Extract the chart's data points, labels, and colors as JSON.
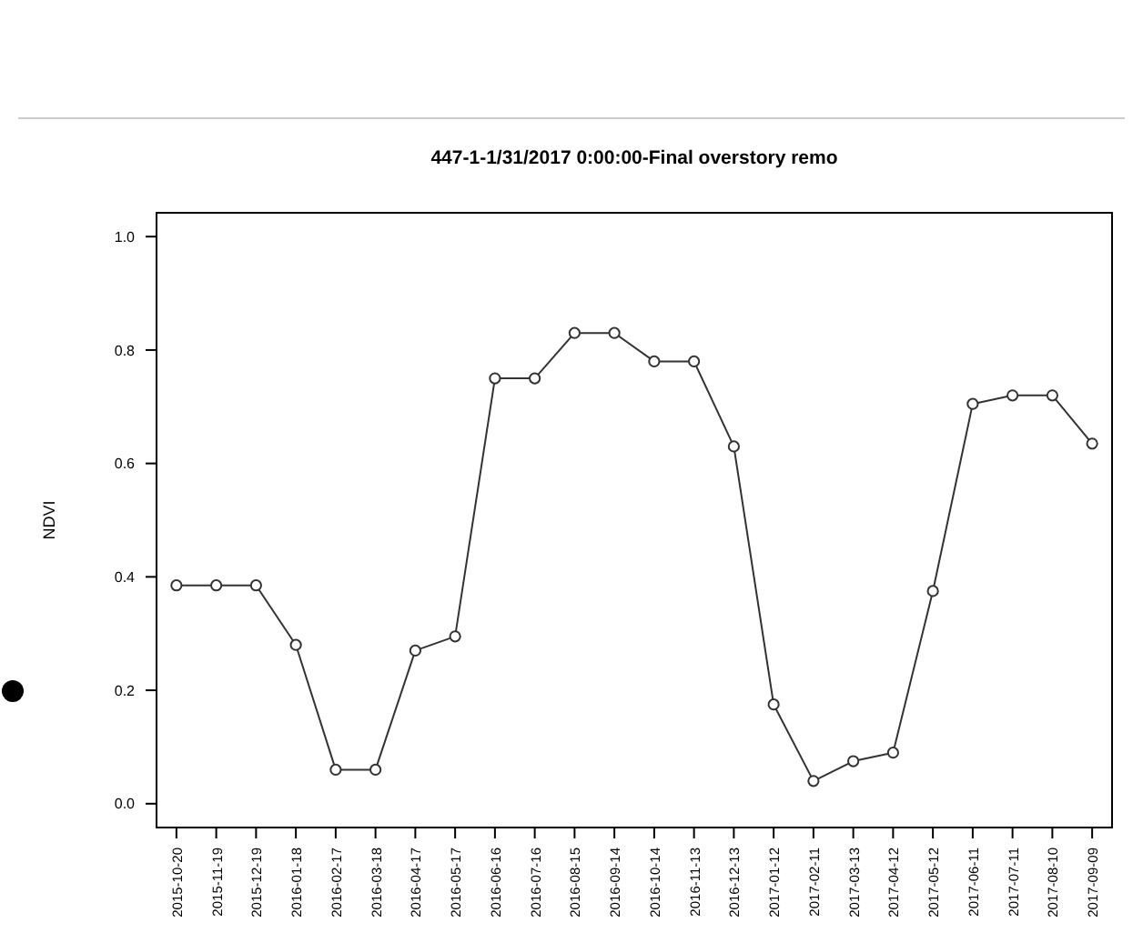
{
  "chart_data": {
    "type": "line",
    "title": "447-1-1/31/2017 0:00:00-Final overstory remo",
    "ylabel": "NDVI",
    "categories": [
      "2015-10-20",
      "2015-11-19",
      "2015-12-19",
      "2016-01-18",
      "2016-02-17",
      "2016-03-18",
      "2016-04-17",
      "2016-05-17",
      "2016-06-16",
      "2016-07-16",
      "2016-08-15",
      "2016-09-14",
      "2016-10-14",
      "2016-11-13",
      "2016-12-13",
      "2017-01-12",
      "2017-02-11",
      "2017-03-13",
      "2017-04-12",
      "2017-05-12",
      "2017-06-11",
      "2017-07-11",
      "2017-08-10",
      "2017-09-09"
    ],
    "series": [
      {
        "color": "#333333",
        "values": [
          0.385,
          0.385,
          0.385,
          0.28,
          0.06,
          0.06,
          0.27,
          0.295,
          0.75,
          0.75,
          0.83,
          0.83,
          0.78,
          0.78,
          0.63,
          0.175,
          0.04,
          0.075,
          0.09,
          0.375,
          0.705,
          0.72,
          0.72,
          0.635
        ]
      }
    ],
    "ylim": [
      -0.042,
      1.042
    ],
    "yticks": [
      {
        "value": 0,
        "label": "0.0"
      },
      {
        "value": 0.2,
        "label": "0.2"
      },
      {
        "value": 0.4,
        "label": "0.4"
      },
      {
        "value": 0.6,
        "label": "0.6"
      },
      {
        "value": 0.8,
        "label": "0.8"
      },
      {
        "value": 1,
        "label": "1.0"
      }
    ],
    "marker": "circle",
    "line_style": "solid"
  }
}
